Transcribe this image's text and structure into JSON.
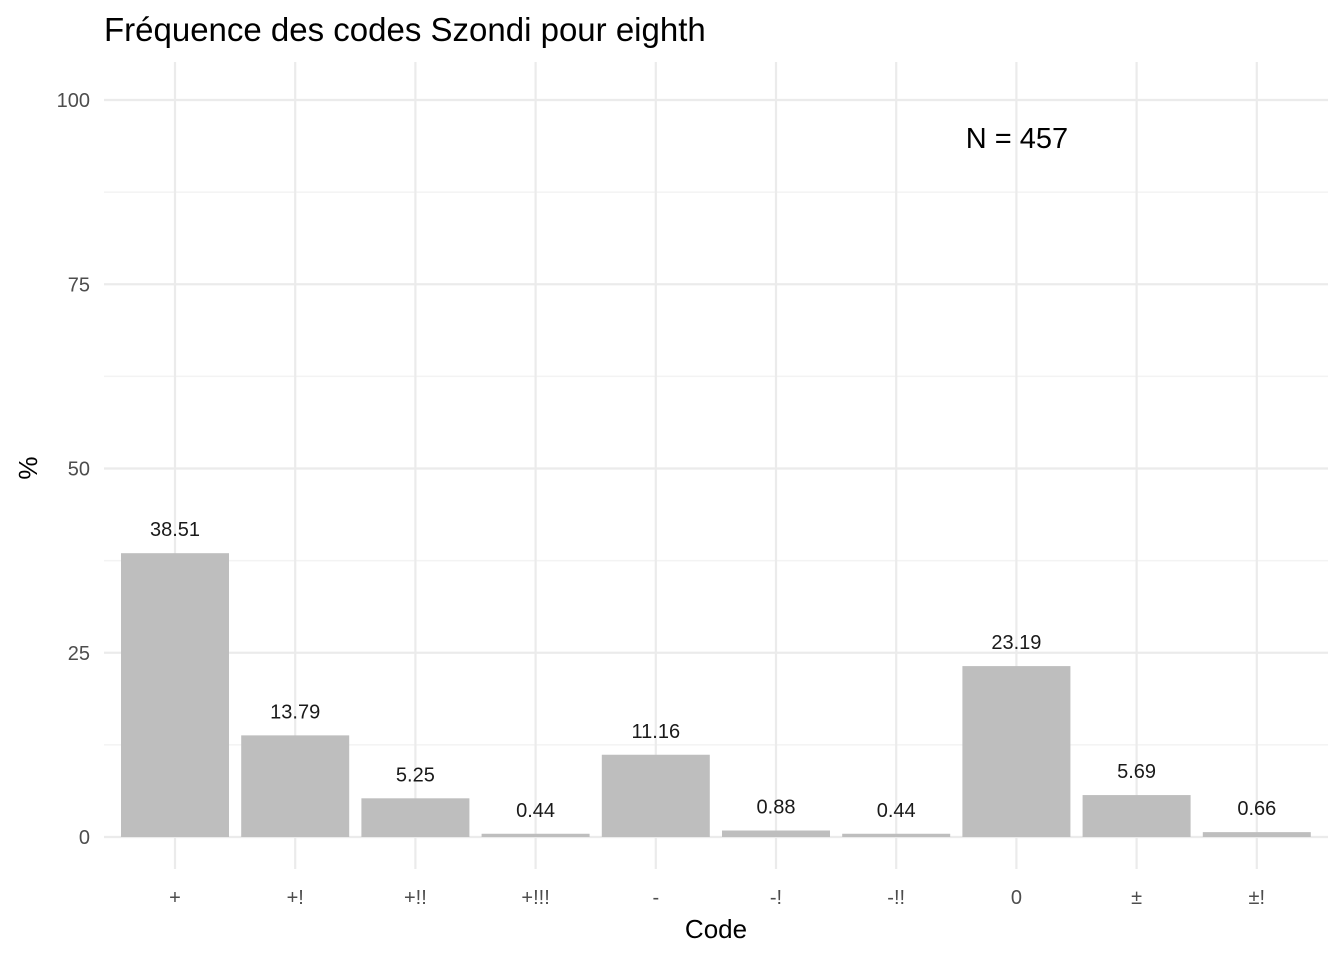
{
  "chart_data": {
    "type": "bar",
    "title": "Fréquence des codes Szondi pour eighth",
    "xlabel": "Code",
    "ylabel": "%",
    "categories": [
      "+",
      "+!",
      "+!!",
      "+!!!",
      "-",
      "-!",
      "-!!",
      "0",
      "±",
      "±!"
    ],
    "values": [
      38.51,
      13.79,
      5.25,
      0.44,
      11.16,
      0.88,
      0.44,
      23.19,
      5.69,
      0.66
    ],
    "data_labels": [
      "38.51",
      "13.79",
      "5.25",
      "0.44",
      "11.16",
      "0.88",
      "0.44",
      "23.19",
      "5.69",
      "0.66"
    ],
    "ylim": [
      0,
      100
    ],
    "y_ticks": [
      0,
      25,
      50,
      75,
      100
    ],
    "y_tick_labels": [
      "0",
      "25",
      "50",
      "75",
      "100"
    ],
    "annotation": "N = 457",
    "grid": true,
    "legend": "none",
    "bar_color": "#bebebe"
  }
}
